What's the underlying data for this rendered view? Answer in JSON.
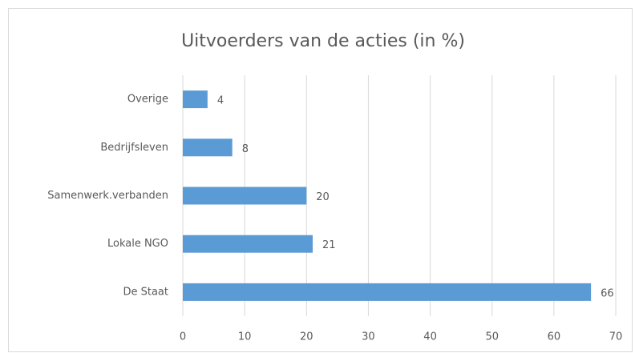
{
  "chart_data": {
    "type": "bar",
    "orientation": "horizontal",
    "title": "Uitvoerders van de acties (in %)",
    "categories": [
      "Overige",
      "Bedrijfsleven",
      "Samenwerk.verbanden",
      "Lokale NGO",
      "De Staat"
    ],
    "values": [
      4,
      8,
      20,
      21,
      66
    ],
    "color": "#5b9bd5",
    "xlim": [
      0,
      70
    ],
    "xticks": [
      0,
      10,
      20,
      30,
      40,
      50,
      60,
      70
    ],
    "grid": true
  }
}
